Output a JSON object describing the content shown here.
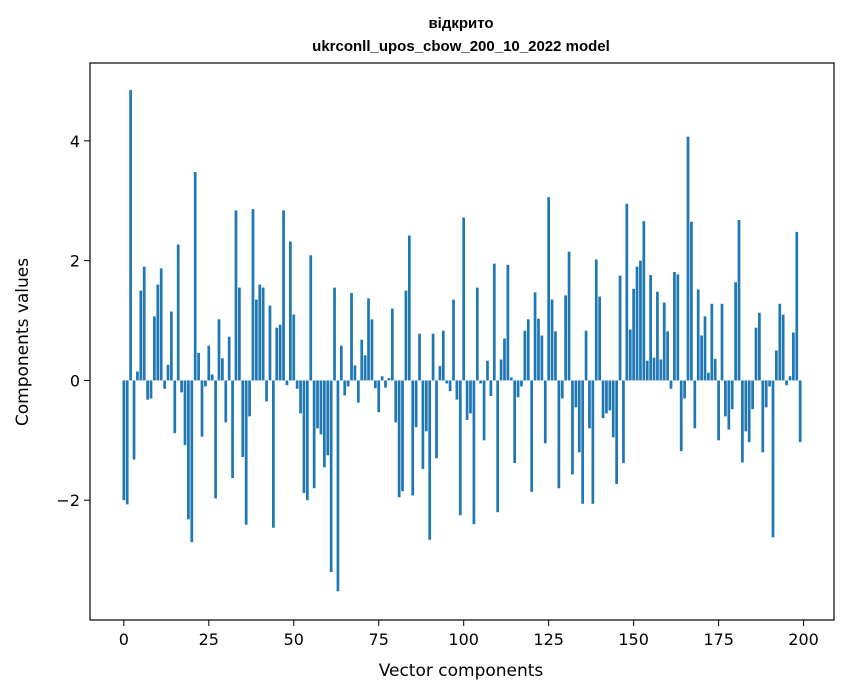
{
  "chart_data": {
    "type": "bar",
    "title_line1": "відкрито",
    "title_line2": "ukrconll_upos_cbow_200_10_2022 model",
    "xlabel": "Vector components",
    "ylabel": "Components values",
    "xlim": [
      -9.95,
      208.95
    ],
    "ylim": [
      -4.0,
      5.3
    ],
    "xticks": [
      0,
      25,
      50,
      75,
      100,
      125,
      150,
      175,
      200
    ],
    "yticks": [
      -2,
      0,
      2,
      4
    ],
    "bar_color": "#1f77b4",
    "grid": false,
    "legend": "none",
    "values": [
      -2.0,
      -2.07,
      4.85,
      -1.32,
      0.15,
      1.5,
      1.9,
      -0.32,
      -0.3,
      1.07,
      1.6,
      1.87,
      -0.14,
      0.26,
      1.15,
      -0.88,
      2.27,
      -0.2,
      -1.08,
      -2.32,
      -2.7,
      3.48,
      0.46,
      -0.94,
      -0.1,
      0.58,
      0.1,
      -1.97,
      1.02,
      0.37,
      -0.7,
      0.73,
      -1.63,
      2.84,
      1.55,
      -1.28,
      -2.41,
      -0.6,
      2.86,
      1.35,
      1.6,
      1.55,
      -0.35,
      1.25,
      -2.46,
      0.88,
      0.93,
      2.84,
      -0.08,
      2.32,
      1.1,
      -0.14,
      -0.55,
      -1.88,
      -2.0,
      2.09,
      -1.8,
      -0.8,
      -0.9,
      -1.45,
      -1.25,
      -3.2,
      1.55,
      -3.52,
      0.58,
      -0.25,
      -0.1,
      1.46,
      0.25,
      -0.37,
      0.68,
      0.42,
      1.37,
      1.02,
      -0.13,
      -0.53,
      0.07,
      -0.12,
      0.04,
      1.2,
      -0.7,
      -1.95,
      -1.85,
      1.5,
      2.42,
      -1.92,
      -0.78,
      0.78,
      -1.48,
      -0.85,
      -2.66,
      0.78,
      -1.3,
      0.24,
      0.83,
      -0.05,
      -0.18,
      1.35,
      -0.32,
      -2.25,
      2.72,
      -0.66,
      -0.55,
      -2.4,
      1.55,
      -0.05,
      -1.0,
      0.33,
      -0.26,
      1.95,
      -2.2,
      0.35,
      0.7,
      1.93,
      0.05,
      -1.38,
      -0.28,
      -0.1,
      0.83,
      1.02,
      -1.86,
      1.47,
      1.03,
      0.75,
      -1.05,
      3.06,
      1.35,
      0.82,
      -1.8,
      -0.3,
      1.42,
      2.15,
      -1.57,
      -0.45,
      -1.2,
      -2.06,
      0.83,
      -0.8,
      -2.06,
      2.02,
      1.4,
      -0.63,
      -0.55,
      -0.5,
      -0.95,
      -1.73,
      1.75,
      -1.38,
      2.95,
      0.85,
      1.53,
      1.9,
      2.0,
      2.66,
      0.33,
      1.76,
      0.38,
      1.48,
      0.35,
      1.3,
      0.82,
      -0.14,
      1.81,
      1.77,
      -1.18,
      -0.3,
      4.07,
      2.65,
      -0.8,
      1.52,
      0.75,
      1.07,
      0.13,
      1.28,
      0.36,
      -1.0,
      1.28,
      -0.6,
      -0.82,
      -0.48,
      1.64,
      2.68,
      -1.37,
      -0.85,
      -1.03,
      -0.48,
      0.88,
      1.13,
      -1.2,
      -0.45,
      -0.1,
      -2.62,
      0.5,
      1.28,
      1.1,
      -0.08,
      0.07,
      0.8,
      2.48,
      -1.03
    ]
  }
}
